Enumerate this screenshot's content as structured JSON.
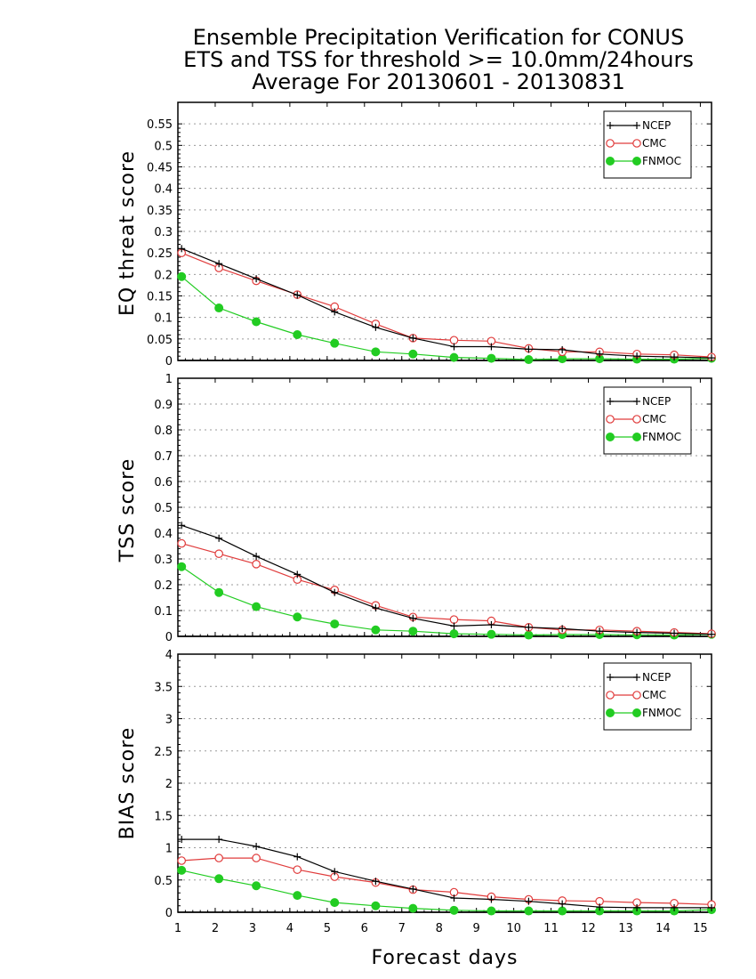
{
  "figure": {
    "title_lines": [
      "Ensemble Precipitation Verification for CONUS",
      "ETS and TSS for threshold >= 10.0mm/24hours",
      "Average For 20130601 - 20130831"
    ],
    "xlabel": "Forecast days"
  },
  "colors": {
    "NCEP": "#000000",
    "CMC": "#e03c3c",
    "FNMOC": "#22cc22",
    "grid": "#9a9a9a"
  },
  "chart_data": [
    {
      "type": "line",
      "ylabel": "EQ threat score",
      "xlim": [
        1,
        15.3
      ],
      "ylim": [
        0,
        0.6
      ],
      "yticks": [
        "0",
        "0.05",
        "0.1",
        "0.15",
        "0.2",
        "0.25",
        "0.3",
        "0.35",
        "0.4",
        "0.45",
        "0.5",
        "0.55"
      ],
      "grid": true,
      "legend": "top-right",
      "x": [
        1.1,
        2.1,
        3.1,
        4.2,
        5.2,
        6.3,
        7.3,
        8.4,
        9.4,
        10.4,
        11.3,
        12.3,
        13.3,
        14.3,
        15.3
      ],
      "series": [
        {
          "name": "NCEP",
          "marker": "plus",
          "values": [
            0.26,
            0.225,
            0.19,
            0.152,
            0.113,
            0.077,
            0.052,
            0.032,
            0.032,
            0.026,
            0.025,
            0.015,
            0.01,
            0.008,
            0.006
          ]
        },
        {
          "name": "CMC",
          "marker": "open-circle",
          "values": [
            0.25,
            0.215,
            0.185,
            0.153,
            0.125,
            0.085,
            0.052,
            0.047,
            0.045,
            0.028,
            0.02,
            0.02,
            0.015,
            0.013,
            0.008
          ]
        },
        {
          "name": "FNMOC",
          "marker": "filled-circle",
          "values": [
            0.195,
            0.122,
            0.09,
            0.06,
            0.04,
            0.02,
            0.015,
            0.007,
            0.005,
            0.002,
            0.004,
            0.004,
            0.003,
            0.003,
            0.005
          ]
        }
      ]
    },
    {
      "type": "line",
      "ylabel": "TSS score",
      "xlim": [
        1,
        15.3
      ],
      "ylim": [
        0,
        1
      ],
      "yticks": [
        "0",
        "0.1",
        "0.2",
        "0.3",
        "0.4",
        "0.5",
        "0.6",
        "0.7",
        "0.8",
        "0.9",
        "1"
      ],
      "grid": true,
      "legend": "top-right",
      "x": [
        1.1,
        2.1,
        3.1,
        4.2,
        5.2,
        6.3,
        7.3,
        8.4,
        9.4,
        10.4,
        11.3,
        12.3,
        13.3,
        14.3,
        15.3
      ],
      "series": [
        {
          "name": "NCEP",
          "marker": "plus",
          "values": [
            0.43,
            0.38,
            0.31,
            0.24,
            0.17,
            0.11,
            0.07,
            0.04,
            0.045,
            0.035,
            0.03,
            0.02,
            0.015,
            0.012,
            0.008
          ]
        },
        {
          "name": "CMC",
          "marker": "open-circle",
          "values": [
            0.36,
            0.32,
            0.28,
            0.22,
            0.18,
            0.12,
            0.075,
            0.065,
            0.06,
            0.035,
            0.025,
            0.025,
            0.02,
            0.015,
            0.01
          ]
        },
        {
          "name": "FNMOC",
          "marker": "filled-circle",
          "values": [
            0.27,
            0.17,
            0.115,
            0.075,
            0.048,
            0.025,
            0.02,
            0.01,
            0.008,
            0.005,
            0.007,
            0.007,
            0.006,
            0.005,
            0.008
          ]
        }
      ]
    },
    {
      "type": "line",
      "ylabel": "BIAS score",
      "xlabel": "Forecast days",
      "xlim": [
        1,
        15.3
      ],
      "ylim": [
        0,
        4
      ],
      "yticks": [
        "0",
        "0.5",
        "1",
        "1.5",
        "2",
        "2.5",
        "3",
        "3.5",
        "4"
      ],
      "xticks": [
        "1",
        "2",
        "3",
        "4",
        "5",
        "6",
        "7",
        "8",
        "9",
        "10",
        "11",
        "12",
        "13",
        "14",
        "15"
      ],
      "grid": true,
      "legend": "top-right",
      "x": [
        1.1,
        2.1,
        3.1,
        4.2,
        5.2,
        6.3,
        7.3,
        8.4,
        9.4,
        10.4,
        11.3,
        12.3,
        13.3,
        14.3,
        15.3
      ],
      "series": [
        {
          "name": "NCEP",
          "marker": "plus",
          "values": [
            1.13,
            1.13,
            1.02,
            0.86,
            0.63,
            0.48,
            0.36,
            0.22,
            0.2,
            0.17,
            0.13,
            0.08,
            0.07,
            0.07,
            0.07
          ]
        },
        {
          "name": "CMC",
          "marker": "open-circle",
          "values": [
            0.8,
            0.84,
            0.84,
            0.66,
            0.55,
            0.46,
            0.35,
            0.31,
            0.24,
            0.2,
            0.18,
            0.17,
            0.15,
            0.14,
            0.12
          ]
        },
        {
          "name": "FNMOC",
          "marker": "filled-circle",
          "values": [
            0.65,
            0.52,
            0.41,
            0.26,
            0.15,
            0.1,
            0.06,
            0.03,
            0.02,
            0.02,
            0.02,
            0.02,
            0.02,
            0.02,
            0.04
          ]
        }
      ]
    }
  ]
}
